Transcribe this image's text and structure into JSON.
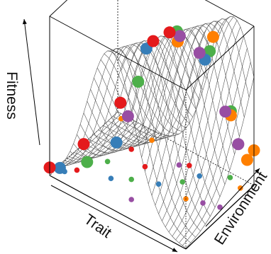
{
  "chart_data": {
    "type": "scatter",
    "view": "3d-perspective",
    "xlabel": "Trait",
    "ylabel": "Environment",
    "zlabel": "Fitness",
    "x_range": [
      0,
      1
    ],
    "y_range": [
      0,
      1
    ],
    "z_range": [
      0,
      1
    ],
    "box": true,
    "ticks": false,
    "surface": {
      "type": "wireframe",
      "color": "#555555",
      "function": "gaussian ridge: fitness = exp(-((trait - (0.45 + 0.4*environment))^2) / 0.06)"
    },
    "point_colors": [
      "#e41a1c",
      "#377eb8",
      "#4daf4a",
      "#984ea3",
      "#ff7f00"
    ],
    "series": [
      {
        "color": "#e41a1c",
        "points": [
          {
            "x": 0.0,
            "y": 0.0,
            "z": 0.05,
            "marker": "large"
          },
          {
            "x": 0.2,
            "y": 0.1,
            "z": 0.25,
            "marker": "large"
          },
          {
            "x": 0.38,
            "y": 0.28,
            "z": 0.52,
            "marker": "large"
          },
          {
            "x": 0.55,
            "y": 0.42,
            "z": 0.93,
            "marker": "large"
          },
          {
            "x": 0.63,
            "y": 0.5,
            "z": 0.99,
            "marker": "large"
          },
          {
            "x": 0.1,
            "y": 0.2,
            "z": 0.0,
            "marker": "small"
          },
          {
            "x": 0.4,
            "y": 0.6,
            "z": 0.0,
            "marker": "small"
          },
          {
            "x": 0.25,
            "y": 0.7,
            "z": 0.0,
            "marker": "small"
          },
          {
            "x": 0.6,
            "y": 0.85,
            "z": 0.0,
            "marker": "small"
          }
        ]
      },
      {
        "color": "#377eb8",
        "points": [
          {
            "x": 0.05,
            "y": 0.05,
            "z": 0.05,
            "marker": "large"
          },
          {
            "x": 0.4,
            "y": 0.18,
            "z": 0.32,
            "marker": "large"
          },
          {
            "x": 0.5,
            "y": 0.42,
            "z": 0.86,
            "marker": "large"
          },
          {
            "x": 0.78,
            "y": 0.72,
            "z": 0.8,
            "marker": "large"
          },
          {
            "x": 0.05,
            "y": 0.12,
            "z": 0.0,
            "marker": "small"
          },
          {
            "x": 0.3,
            "y": 0.3,
            "z": 0.0,
            "marker": "small"
          },
          {
            "x": 0.55,
            "y": 0.5,
            "z": 0.0,
            "marker": "small"
          },
          {
            "x": 0.7,
            "y": 0.8,
            "z": 0.0,
            "marker": "small"
          }
        ]
      },
      {
        "color": "#4daf4a",
        "points": [
          {
            "x": 0.25,
            "y": 0.05,
            "z": 0.18,
            "marker": "large"
          },
          {
            "x": 0.5,
            "y": 0.3,
            "z": 0.7,
            "marker": "large"
          },
          {
            "x": 0.66,
            "y": 0.55,
            "z": 0.99,
            "marker": "large"
          },
          {
            "x": 0.8,
            "y": 0.75,
            "z": 0.85,
            "marker": "large"
          },
          {
            "x": 0.88,
            "y": 0.9,
            "z": 0.45,
            "marker": "large"
          },
          {
            "x": 0.2,
            "y": 0.45,
            "z": 0.0,
            "marker": "small"
          },
          {
            "x": 0.4,
            "y": 0.4,
            "z": 0.0,
            "marker": "small"
          },
          {
            "x": 0.65,
            "y": 0.65,
            "z": 0.0,
            "marker": "small"
          },
          {
            "x": 0.85,
            "y": 0.95,
            "z": 0.0,
            "marker": "small"
          }
        ]
      },
      {
        "color": "#984ea3",
        "points": [
          {
            "x": 0.45,
            "y": 0.25,
            "z": 0.48,
            "marker": "large"
          },
          {
            "x": 0.68,
            "y": 0.55,
            "z": 0.97,
            "marker": "large"
          },
          {
            "x": 0.8,
            "y": 0.6,
            "z": 0.9,
            "marker": "large"
          },
          {
            "x": 0.88,
            "y": 0.82,
            "z": 0.48,
            "marker": "large"
          },
          {
            "x": 0.96,
            "y": 0.85,
            "z": 0.3,
            "marker": "large"
          },
          {
            "x": 0.5,
            "y": 0.2,
            "z": 0.0,
            "marker": "small"
          },
          {
            "x": 0.55,
            "y": 0.8,
            "z": 0.0,
            "marker": "small"
          },
          {
            "x": 0.85,
            "y": 0.55,
            "z": 0.0,
            "marker": "small"
          },
          {
            "x": 0.95,
            "y": 0.6,
            "z": 0.0,
            "marker": "small"
          }
        ]
      },
      {
        "color": "#ff7f00",
        "points": [
          {
            "x": 0.65,
            "y": 0.58,
            "z": 0.91,
            "marker": "large"
          },
          {
            "x": 0.8,
            "y": 0.8,
            "z": 0.92,
            "marker": "large"
          },
          {
            "x": 0.9,
            "y": 0.86,
            "z": 0.45,
            "marker": "large"
          },
          {
            "x": 1.0,
            "y": 0.9,
            "z": 0.2,
            "marker": "large"
          },
          {
            "x": 1.0,
            "y": 1.0,
            "z": 0.22,
            "marker": "large"
          },
          {
            "x": 0.75,
            "y": 0.5,
            "z": 0.0,
            "marker": "small"
          },
          {
            "x": 0.95,
            "y": 0.9,
            "z": 0.0,
            "marker": "small"
          },
          {
            "x": 0.3,
            "y": 0.9,
            "z": 0.0,
            "marker": "small"
          },
          {
            "x": 0.05,
            "y": 0.95,
            "z": 0.0,
            "marker": "small"
          }
        ]
      }
    ]
  }
}
